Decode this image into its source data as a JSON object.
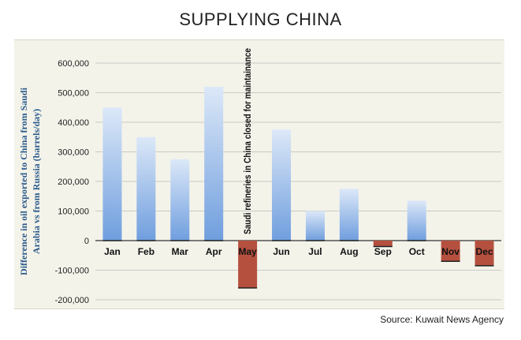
{
  "header": {
    "title": "SUPPLYING CHINA"
  },
  "footer": {
    "source": "Source: Kuwait News Agency"
  },
  "colors": {
    "positive_top": "#dce8f8",
    "positive_bottom": "#6f9ede",
    "negative": "#b5503f",
    "grid": "#bdbdbd",
    "axis": "#333333",
    "panel": "#f3f3ea",
    "ylabel": "#2b5a8a"
  },
  "chart_data": {
    "type": "bar",
    "title": "SUPPLYING CHINA",
    "xlabel": "",
    "ylabel": "Difference in oil exported to China from Saudi Arabia vs from Russia (barrels/day)",
    "ylabel_lines": [
      "Difference in oil exported to China from Saudi",
      "Arabia vs from Russia (barrels/day)"
    ],
    "ylim": [
      -200000,
      600000
    ],
    "yticks": [
      600000,
      500000,
      400000,
      300000,
      200000,
      100000,
      0,
      -100000,
      -200000
    ],
    "ytick_labels": [
      "600,000",
      "500,000",
      "400,000",
      "300,000",
      "200,000",
      "100,000",
      "0",
      "-100,000",
      "-200,000"
    ],
    "grid": true,
    "categories": [
      "Jan",
      "Feb",
      "Mar",
      "Apr",
      "May",
      "Jun",
      "Jul",
      "Aug",
      "Sep",
      "Oct",
      "Nov",
      "Dec"
    ],
    "values": [
      450000,
      350000,
      275000,
      520000,
      -160000,
      375000,
      100000,
      175000,
      -20000,
      135000,
      -70000,
      -85000
    ],
    "annotations": [
      {
        "category": "May",
        "text": "Saudi refineries in China closed for maintainance"
      }
    ]
  }
}
